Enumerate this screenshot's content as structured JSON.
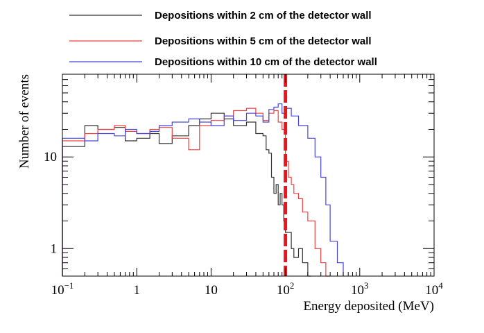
{
  "chart_data": {
    "type": "line",
    "x_scale": "log",
    "y_scale": "log",
    "xlim": [
      0.1,
      10000
    ],
    "ylim": [
      0.5,
      80
    ],
    "xlabel": "Energy deposited (MeV)",
    "ylabel": "Number of events",
    "x_ticks": [
      {
        "value": 0.1,
        "base": "10",
        "exp": "−1"
      },
      {
        "value": 1,
        "base": "1",
        "exp": ""
      },
      {
        "value": 10,
        "base": "10",
        "exp": ""
      },
      {
        "value": 100,
        "base": "10",
        "exp": "2"
      },
      {
        "value": 1000,
        "base": "10",
        "exp": "3"
      },
      {
        "value": 10000,
        "base": "10",
        "exp": "4"
      }
    ],
    "y_ticks": [
      {
        "value": 1,
        "label": "1"
      },
      {
        "value": 10,
        "label": "10"
      }
    ],
    "threshold": {
      "x": 100,
      "color": "#e8171f",
      "style": "dashed"
    },
    "legend_position": "top",
    "series": [
      {
        "name": "Depositions within 2 cm of the detector wall",
        "color": "#333333",
        "edges": [
          0.1,
          0.2,
          0.3,
          0.5,
          0.7,
          1,
          1.5,
          2,
          3,
          5,
          7,
          10,
          15,
          20,
          30,
          40,
          50,
          55,
          60,
          65,
          70,
          75,
          80,
          85,
          90,
          95,
          100,
          110,
          120,
          130,
          150,
          170,
          200,
          220
        ],
        "counts": [
          13,
          22,
          20,
          21,
          15,
          16,
          18,
          14,
          17,
          22,
          26,
          30,
          26,
          22,
          24,
          18,
          17,
          12,
          11,
          6,
          4,
          5,
          3,
          4,
          3,
          2,
          1.5,
          1.5,
          1,
          0.8,
          1,
          0.7,
          0.5
        ]
      },
      {
        "name": "Depositions within 5 cm of the detector wall",
        "color": "#ee4040",
        "edges": [
          0.1,
          0.2,
          0.3,
          0.5,
          0.7,
          1,
          1.5,
          2,
          3,
          5,
          7,
          10,
          15,
          20,
          30,
          40,
          50,
          60,
          70,
          80,
          90,
          100,
          110,
          120,
          130,
          150,
          170,
          200,
          250,
          300,
          350,
          400
        ],
        "counts": [
          15,
          18,
          20,
          22,
          19,
          18,
          20,
          21,
          16,
          12,
          22,
          25,
          28,
          32,
          34,
          30,
          25,
          30,
          32,
          24,
          20,
          9,
          6,
          5,
          4,
          3.5,
          2.5,
          2,
          1,
          0.7,
          0.5
        ]
      },
      {
        "name": "Depositions within 10 cm of the detector wall",
        "color": "#4444dd",
        "edges": [
          0.1,
          0.2,
          0.3,
          0.5,
          0.7,
          1,
          1.5,
          2,
          3,
          5,
          7,
          10,
          15,
          20,
          30,
          40,
          50,
          60,
          70,
          80,
          90,
          100,
          120,
          150,
          200,
          250,
          300,
          350,
          400,
          500,
          600
        ],
        "counts": [
          16,
          15,
          18,
          17,
          20,
          18,
          19,
          22,
          24,
          26,
          24,
          22,
          28,
          25,
          30,
          28,
          24,
          33,
          35,
          38,
          30,
          34,
          28,
          22,
          16,
          10,
          6,
          3,
          1.2,
          0.7
        ]
      }
    ]
  }
}
